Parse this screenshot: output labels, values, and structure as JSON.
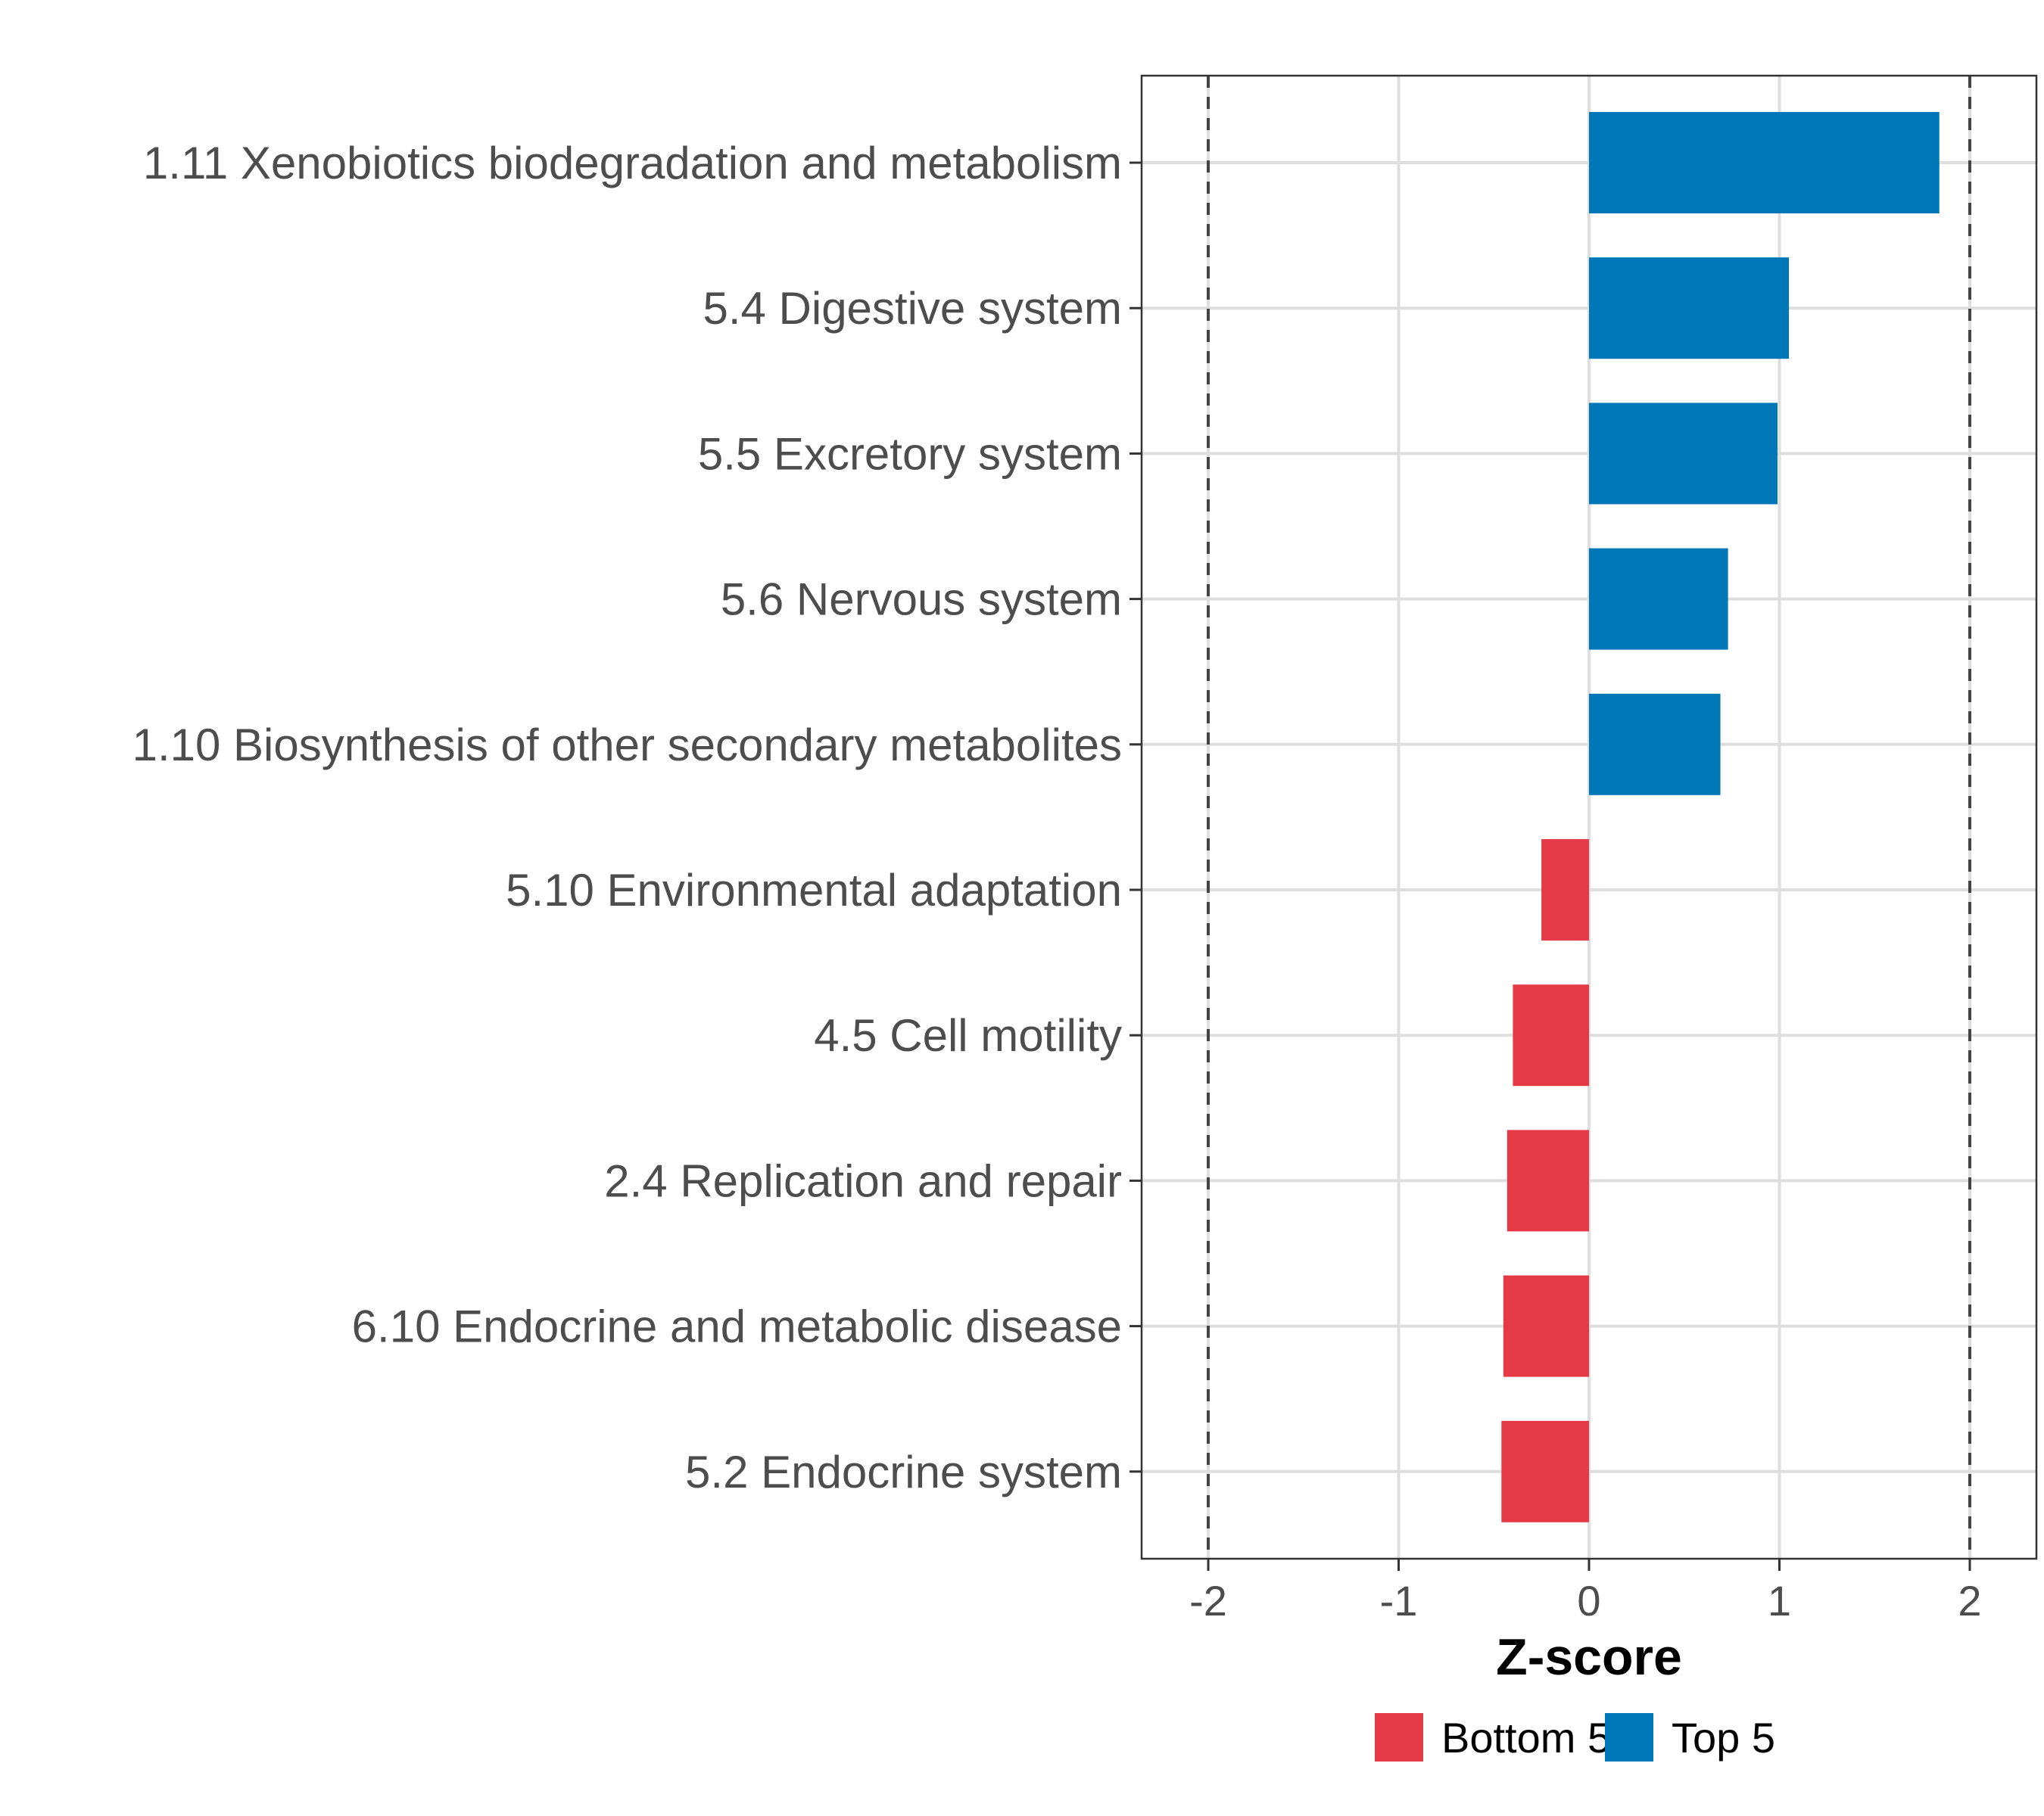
{
  "chart_data": {
    "type": "bar",
    "orientation": "horizontal",
    "categories": [
      "1.11 Xenobiotics biodegradation and metabolism",
      "5.4 Digestive system",
      "5.5 Excretory system",
      "5.6 Nervous system",
      "1.10 Biosynthesis of other secondary metabolites",
      "5.10 Environmental adaptation",
      "4.5 Cell motility",
      "2.4 Replication and repair",
      "6.10 Endocrine and metabolic disease",
      "5.2 Endocrine system"
    ],
    "values": [
      1.84,
      1.05,
      0.99,
      0.73,
      0.69,
      -0.25,
      -0.4,
      -0.43,
      -0.45,
      -0.46
    ],
    "groups": [
      "Top 5",
      "Top 5",
      "Top 5",
      "Top 5",
      "Top 5",
      "Bottom 5",
      "Bottom 5",
      "Bottom 5",
      "Bottom 5",
      "Bottom 5"
    ],
    "xlabel": "Z-score",
    "ylabel": "",
    "xlim": [
      -2.35,
      2.35
    ],
    "xticks": [
      -2,
      -1,
      0,
      1,
      2
    ],
    "xtick_labels": [
      "-2",
      "-1",
      "0",
      "1",
      "2"
    ],
    "reference_lines": [
      -2,
      2
    ],
    "grid": true,
    "legend": {
      "placement": "bottom",
      "items": [
        {
          "label": "Bottom 5",
          "color": "#e63946"
        },
        {
          "label": "Top 5",
          "color": "#0077b6"
        }
      ]
    },
    "colors": {
      "Top 5": "#0077b6",
      "Bottom 5": "#e63946"
    }
  }
}
